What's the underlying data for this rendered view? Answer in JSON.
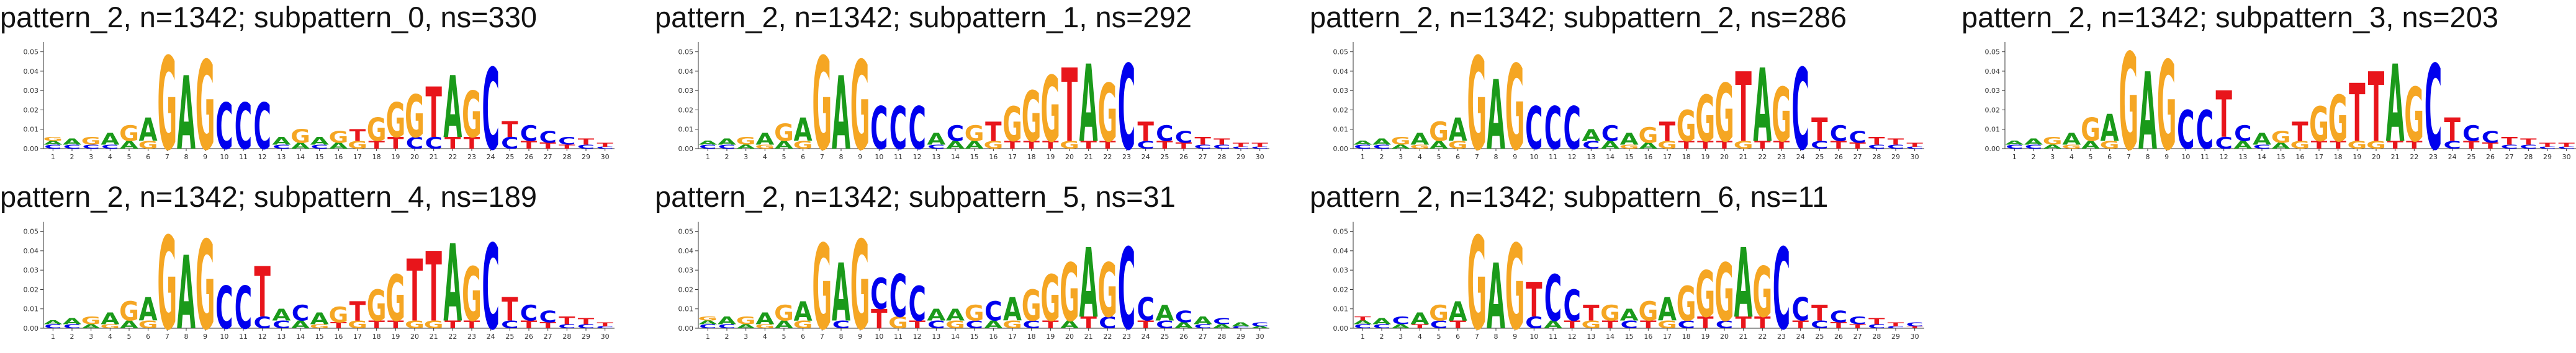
{
  "colors": {
    "A": "#1a9a1a",
    "C": "#0000ee",
    "G": "#f5a623",
    "T": "#e8151b",
    "axis": "#333333"
  },
  "chart_data": [
    {
      "type": "sequence-logo",
      "title": "pattern_2, n=1342; subpattern_0, ns=330",
      "ylim": [
        0,
        0.055
      ],
      "yticks": [
        "0.00",
        "0.01",
        "0.02",
        "0.03",
        "0.04",
        "0.05"
      ],
      "xticks": [
        "1",
        "2",
        "3",
        "4",
        "5",
        "6",
        "7",
        "8",
        "9",
        "10",
        "11",
        "12",
        "13",
        "14",
        "15",
        "16",
        "17",
        "18",
        "19",
        "20",
        "21",
        "22",
        "23",
        "24",
        "25",
        "26",
        "27",
        "28",
        "29",
        "30"
      ],
      "positions": [
        {
          "C": 0.002,
          "A": 0.002,
          "G": 0.002
        },
        {
          "A": 0.003,
          "C": 0.002
        },
        {
          "G": 0.004,
          "C": 0.002
        },
        {
          "A": 0.006,
          "C": 0.002
        },
        {
          "G": 0.008,
          "A": 0.004
        },
        {
          "A": 0.012,
          "G": 0.004
        },
        {
          "G": 0.048
        },
        {
          "A": 0.038
        },
        {
          "G": 0.046
        },
        {
          "C": 0.024
        },
        {
          "C": 0.024
        },
        {
          "C": 0.024
        },
        {
          "A": 0.004,
          "C": 0.002
        },
        {
          "G": 0.007,
          "A": 0.003
        },
        {
          "A": 0.004,
          "C": 0.002
        },
        {
          "G": 0.006,
          "A": 0.003
        },
        {
          "T": 0.006,
          "G": 0.004
        },
        {
          "G": 0.012,
          "T": 0.004
        },
        {
          "G": 0.018,
          "T": 0.006
        },
        {
          "G": 0.022,
          "C": 0.006
        },
        {
          "T": 0.026,
          "C": 0.006
        },
        {
          "A": 0.032,
          "T": 0.006
        },
        {
          "G": 0.024,
          "T": 0.006
        },
        {
          "C": 0.042
        },
        {
          "T": 0.008,
          "C": 0.006
        },
        {
          "C": 0.008,
          "T": 0.004
        },
        {
          "C": 0.006,
          "T": 0.003
        },
        {
          "C": 0.004,
          "T": 0.002
        },
        {
          "T": 0.003,
          "C": 0.002
        },
        {
          "T": 0.002,
          "C": 0.001
        }
      ]
    },
    {
      "type": "sequence-logo",
      "title": "pattern_2, n=1342; subpattern_1, ns=292",
      "ylim": [
        0,
        0.055
      ],
      "yticks": [
        "0.00",
        "0.01",
        "0.02",
        "0.03",
        "0.04",
        "0.05"
      ],
      "xticks": [
        "1",
        "2",
        "3",
        "4",
        "5",
        "6",
        "7",
        "8",
        "9",
        "10",
        "11",
        "12",
        "13",
        "14",
        "15",
        "16",
        "17",
        "18",
        "19",
        "20",
        "21",
        "22",
        "23",
        "24",
        "25",
        "26",
        "27",
        "28",
        "29",
        "30"
      ],
      "positions": [
        {
          "C": 0.002,
          "A": 0.002
        },
        {
          "A": 0.003,
          "C": 0.002
        },
        {
          "G": 0.004,
          "A": 0.002
        },
        {
          "A": 0.006,
          "G": 0.002
        },
        {
          "G": 0.009,
          "A": 0.004
        },
        {
          "A": 0.012,
          "G": 0.004
        },
        {
          "G": 0.048
        },
        {
          "A": 0.038
        },
        {
          "G": 0.046
        },
        {
          "C": 0.022
        },
        {
          "C": 0.022
        },
        {
          "C": 0.022
        },
        {
          "A": 0.006,
          "C": 0.002
        },
        {
          "C": 0.008,
          "A": 0.004
        },
        {
          "G": 0.008,
          "A": 0.004
        },
        {
          "T": 0.01,
          "G": 0.004
        },
        {
          "G": 0.018,
          "T": 0.004
        },
        {
          "G": 0.026,
          "T": 0.004
        },
        {
          "G": 0.034,
          "T": 0.004
        },
        {
          "T": 0.038,
          "G": 0.004
        },
        {
          "A": 0.04,
          "T": 0.004
        },
        {
          "G": 0.03,
          "T": 0.004
        },
        {
          "C": 0.044
        },
        {
          "T": 0.01,
          "C": 0.004
        },
        {
          "C": 0.008,
          "T": 0.004
        },
        {
          "C": 0.006,
          "T": 0.003
        },
        {
          "T": 0.004,
          "C": 0.002
        },
        {
          "T": 0.003,
          "C": 0.002
        },
        {
          "T": 0.002,
          "C": 0.001
        },
        {
          "T": 0.002,
          "C": 0.001
        }
      ]
    },
    {
      "type": "sequence-logo",
      "title": "pattern_2, n=1342; subpattern_2, ns=286",
      "ylim": [
        0,
        0.055
      ],
      "yticks": [
        "0.00",
        "0.01",
        "0.02",
        "0.03",
        "0.04",
        "0.05"
      ],
      "xticks": [
        "1",
        "2",
        "3",
        "4",
        "5",
        "6",
        "7",
        "8",
        "9",
        "10",
        "11",
        "12",
        "13",
        "14",
        "15",
        "16",
        "17",
        "18",
        "19",
        "20",
        "21",
        "22",
        "23",
        "24",
        "25",
        "26",
        "27",
        "28",
        "29",
        "30"
      ],
      "positions": [
        {
          "C": 0.002,
          "A": 0.002
        },
        {
          "A": 0.003,
          "C": 0.002
        },
        {
          "G": 0.004,
          "A": 0.002
        },
        {
          "A": 0.006,
          "G": 0.002
        },
        {
          "G": 0.01,
          "A": 0.004
        },
        {
          "A": 0.012,
          "G": 0.004
        },
        {
          "G": 0.048
        },
        {
          "A": 0.036
        },
        {
          "G": 0.044
        },
        {
          "C": 0.022
        },
        {
          "C": 0.022
        },
        {
          "C": 0.022
        },
        {
          "A": 0.006,
          "C": 0.004
        },
        {
          "C": 0.008,
          "A": 0.004
        },
        {
          "A": 0.006,
          "G": 0.002
        },
        {
          "G": 0.008,
          "A": 0.003
        },
        {
          "T": 0.01,
          "G": 0.004
        },
        {
          "G": 0.016,
          "T": 0.004
        },
        {
          "G": 0.024,
          "T": 0.004
        },
        {
          "G": 0.03,
          "T": 0.004
        },
        {
          "T": 0.036,
          "G": 0.004
        },
        {
          "A": 0.038,
          "T": 0.004
        },
        {
          "G": 0.028,
          "T": 0.004
        },
        {
          "C": 0.042
        },
        {
          "T": 0.012,
          "C": 0.004
        },
        {
          "C": 0.008,
          "T": 0.004
        },
        {
          "C": 0.006,
          "T": 0.003
        },
        {
          "T": 0.004,
          "C": 0.002
        },
        {
          "T": 0.003,
          "C": 0.002
        },
        {
          "T": 0.002,
          "C": 0.001
        }
      ]
    },
    {
      "type": "sequence-logo",
      "title": "pattern_2, n=1342; subpattern_3, ns=203",
      "ylim": [
        0,
        0.055
      ],
      "yticks": [
        "0.00",
        "0.01",
        "0.02",
        "0.03",
        "0.04",
        "0.05"
      ],
      "xticks": [
        "1",
        "2",
        "3",
        "4",
        "5",
        "6",
        "7",
        "8",
        "9",
        "10",
        "11",
        "12",
        "13",
        "14",
        "15",
        "16",
        "17",
        "18",
        "19",
        "20",
        "21",
        "22",
        "23",
        "24",
        "25",
        "26",
        "27",
        "28",
        "29",
        "30"
      ],
      "positions": [
        {
          "C": 0.002,
          "A": 0.002
        },
        {
          "A": 0.003,
          "C": 0.002
        },
        {
          "G": 0.004,
          "A": 0.002
        },
        {
          "A": 0.006,
          "G": 0.002
        },
        {
          "G": 0.012,
          "A": 0.004
        },
        {
          "A": 0.014,
          "G": 0.004
        },
        {
          "G": 0.05
        },
        {
          "A": 0.04
        },
        {
          "G": 0.046
        },
        {
          "C": 0.02
        },
        {
          "C": 0.02
        },
        {
          "T": 0.024,
          "C": 0.006
        },
        {
          "C": 0.008,
          "A": 0.004
        },
        {
          "A": 0.006,
          "C": 0.002
        },
        {
          "G": 0.006,
          "A": 0.003
        },
        {
          "T": 0.01,
          "G": 0.004
        },
        {
          "G": 0.018,
          "T": 0.004
        },
        {
          "G": 0.024,
          "T": 0.004
        },
        {
          "T": 0.03,
          "G": 0.004
        },
        {
          "T": 0.036,
          "G": 0.004
        },
        {
          "A": 0.04,
          "T": 0.004
        },
        {
          "G": 0.028,
          "T": 0.004
        },
        {
          "C": 0.044
        },
        {
          "T": 0.012,
          "C": 0.004
        },
        {
          "C": 0.008,
          "T": 0.004
        },
        {
          "C": 0.006,
          "T": 0.003
        },
        {
          "T": 0.004,
          "C": 0.002
        },
        {
          "T": 0.003,
          "C": 0.002
        },
        {
          "T": 0.002,
          "C": 0.001
        },
        {
          "T": 0.002,
          "C": 0.001
        }
      ]
    },
    {
      "type": "sequence-logo",
      "title": "pattern_2, n=1342; subpattern_4, ns=189",
      "ylim": [
        0,
        0.055
      ],
      "yticks": [
        "0.00",
        "0.01",
        "0.02",
        "0.03",
        "0.04",
        "0.05"
      ],
      "xticks": [
        "1",
        "2",
        "3",
        "4",
        "5",
        "6",
        "7",
        "8",
        "9",
        "10",
        "11",
        "12",
        "13",
        "14",
        "15",
        "16",
        "17",
        "18",
        "19",
        "20",
        "21",
        "22",
        "23",
        "24",
        "25",
        "26",
        "27",
        "28",
        "29",
        "30"
      ],
      "positions": [
        {
          "C": 0.002,
          "A": 0.002
        },
        {
          "A": 0.003,
          "C": 0.002
        },
        {
          "G": 0.004,
          "A": 0.002
        },
        {
          "A": 0.006,
          "G": 0.002
        },
        {
          "G": 0.01,
          "A": 0.004
        },
        {
          "A": 0.012,
          "G": 0.004
        },
        {
          "G": 0.048
        },
        {
          "A": 0.038
        },
        {
          "G": 0.046
        },
        {
          "C": 0.022
        },
        {
          "C": 0.022
        },
        {
          "T": 0.026,
          "C": 0.006
        },
        {
          "A": 0.006,
          "C": 0.004
        },
        {
          "C": 0.008,
          "A": 0.004
        },
        {
          "A": 0.006,
          "G": 0.002
        },
        {
          "G": 0.008,
          "T": 0.003
        },
        {
          "T": 0.01,
          "G": 0.004
        },
        {
          "G": 0.016,
          "T": 0.004
        },
        {
          "G": 0.024,
          "T": 0.004
        },
        {
          "T": 0.032,
          "G": 0.004
        },
        {
          "T": 0.036,
          "G": 0.004
        },
        {
          "A": 0.04,
          "T": 0.004
        },
        {
          "G": 0.028,
          "T": 0.004
        },
        {
          "C": 0.044
        },
        {
          "T": 0.012,
          "C": 0.004
        },
        {
          "C": 0.008,
          "T": 0.004
        },
        {
          "C": 0.006,
          "T": 0.003
        },
        {
          "T": 0.004,
          "C": 0.002
        },
        {
          "T": 0.003,
          "C": 0.002
        },
        {
          "T": 0.002,
          "C": 0.001
        }
      ]
    },
    {
      "type": "sequence-logo",
      "title": "pattern_2, n=1342; subpattern_5, ns=31",
      "ylim": [
        0,
        0.055
      ],
      "yticks": [
        "0.00",
        "0.01",
        "0.02",
        "0.03",
        "0.04",
        "0.05"
      ],
      "xticks": [
        "1",
        "2",
        "3",
        "4",
        "5",
        "6",
        "7",
        "8",
        "9",
        "10",
        "11",
        "12",
        "13",
        "14",
        "15",
        "16",
        "17",
        "18",
        "19",
        "20",
        "21",
        "22",
        "23",
        "24",
        "25",
        "26",
        "27",
        "28",
        "29",
        "30"
      ],
      "positions": [
        {
          "C": 0.002,
          "A": 0.002,
          "G": 0.002
        },
        {
          "A": 0.004,
          "C": 0.002
        },
        {
          "G": 0.004,
          "A": 0.002
        },
        {
          "A": 0.006,
          "G": 0.002
        },
        {
          "G": 0.008,
          "A": 0.004
        },
        {
          "A": 0.01,
          "G": 0.004
        },
        {
          "G": 0.044
        },
        {
          "A": 0.03,
          "C": 0.004
        },
        {
          "G": 0.046
        },
        {
          "T": 0.01,
          "C": 0.016
        },
        {
          "C": 0.022,
          "G": 0.006
        },
        {
          "C": 0.018,
          "T": 0.004
        },
        {
          "A": 0.006,
          "C": 0.004
        },
        {
          "A": 0.006,
          "G": 0.004
        },
        {
          "G": 0.008,
          "C": 0.004
        },
        {
          "C": 0.01,
          "A": 0.004
        },
        {
          "A": 0.012,
          "G": 0.004
        },
        {
          "G": 0.016,
          "C": 0.004
        },
        {
          "G": 0.024,
          "T": 0.004
        },
        {
          "G": 0.03,
          "A": 0.004
        },
        {
          "A": 0.036,
          "T": 0.006
        },
        {
          "G": 0.028,
          "C": 0.006
        },
        {
          "C": 0.042
        },
        {
          "C": 0.012,
          "T": 0.004
        },
        {
          "A": 0.008,
          "C": 0.004
        },
        {
          "C": 0.006,
          "A": 0.003
        },
        {
          "A": 0.004,
          "C": 0.002
        },
        {
          "C": 0.003,
          "A": 0.002
        },
        {
          "A": 0.002,
          "C": 0.001
        },
        {
          "C": 0.002,
          "A": 0.001
        }
      ]
    },
    {
      "type": "sequence-logo",
      "title": "pattern_2, n=1342; subpattern_6, ns=11",
      "ylim": [
        0,
        0.055
      ],
      "yticks": [
        "0.00",
        "0.01",
        "0.02",
        "0.03",
        "0.04",
        "0.05"
      ],
      "xticks": [
        "1",
        "2",
        "3",
        "4",
        "5",
        "6",
        "7",
        "8",
        "9",
        "10",
        "11",
        "12",
        "13",
        "14",
        "15",
        "16",
        "17",
        "18",
        "19",
        "20",
        "21",
        "22",
        "23",
        "24",
        "25",
        "26",
        "27",
        "28",
        "29",
        "30"
      ],
      "positions": [
        {
          "C": 0.002,
          "A": 0.002,
          "T": 0.002
        },
        {
          "A": 0.003,
          "C": 0.002
        },
        {
          "C": 0.004,
          "A": 0.002
        },
        {
          "A": 0.006,
          "T": 0.002
        },
        {
          "G": 0.008,
          "C": 0.004
        },
        {
          "A": 0.01,
          "T": 0.004
        },
        {
          "G": 0.048
        },
        {
          "A": 0.034
        },
        {
          "G": 0.044
        },
        {
          "T": 0.018,
          "C": 0.006
        },
        {
          "C": 0.024,
          "A": 0.004
        },
        {
          "C": 0.016,
          "T": 0.004
        },
        {
          "T": 0.008,
          "G": 0.004
        },
        {
          "G": 0.008,
          "T": 0.004
        },
        {
          "A": 0.006,
          "C": 0.004
        },
        {
          "G": 0.01,
          "T": 0.004
        },
        {
          "A": 0.012,
          "G": 0.004
        },
        {
          "G": 0.018,
          "C": 0.004
        },
        {
          "G": 0.024,
          "T": 0.006
        },
        {
          "G": 0.03,
          "C": 0.004
        },
        {
          "A": 0.036,
          "T": 0.006
        },
        {
          "G": 0.026,
          "T": 0.006
        },
        {
          "C": 0.042
        },
        {
          "C": 0.012,
          "T": 0.004
        },
        {
          "T": 0.008,
          "C": 0.004
        },
        {
          "C": 0.006,
          "T": 0.003
        },
        {
          "C": 0.004,
          "T": 0.002
        },
        {
          "T": 0.003,
          "C": 0.002
        },
        {
          "T": 0.002,
          "C": 0.001
        },
        {
          "C": 0.002,
          "T": 0.001
        }
      ]
    }
  ]
}
